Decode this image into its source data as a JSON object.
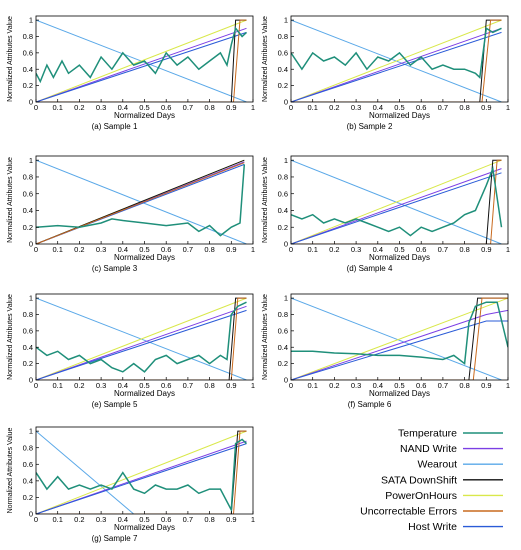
{
  "colors": {
    "Temperature": "#1f8f7a",
    "NAND Write": "#7b3fe4",
    "Wearout": "#5aa8e8",
    "SATA DownShift": "#111111",
    "PowerOnHours": "#d9e84a",
    "Uncorrectable Errors": "#c96a1e",
    "Host Write": "#2a5bd7"
  },
  "legend": {
    "position": "bottom-right",
    "entries": [
      "Temperature",
      "NAND Write",
      "Wearout",
      "SATA DownShift",
      "PowerOnHours",
      "Uncorrectable Errors",
      "Host Write"
    ]
  },
  "chart_data": [
    {
      "type": "line",
      "caption": "(a)  Sample 1",
      "xlabel": "Normalized Days",
      "ylabel": "Normalized Attributes Value",
      "xlim": [
        0,
        1
      ],
      "ylim": [
        0,
        1.05
      ],
      "xticks": [
        "0",
        "0.1",
        "0.2",
        "0.3",
        "0.4",
        "0.5",
        "0.6",
        "0.7",
        "0.8",
        "0.9",
        "1"
      ],
      "yticks": [
        "0",
        "0.2",
        "0.4",
        "0.6",
        "0.8",
        "1"
      ],
      "grid": false,
      "series": [
        {
          "name": "Wearout",
          "x": [
            0,
            0.97
          ],
          "y": [
            1.0,
            0.0
          ]
        },
        {
          "name": "PowerOnHours",
          "x": [
            0,
            0.97
          ],
          "y": [
            0,
            1.0
          ]
        },
        {
          "name": "NAND Write",
          "x": [
            0,
            0.97
          ],
          "y": [
            0,
            0.9
          ]
        },
        {
          "name": "Host Write",
          "x": [
            0,
            0.97
          ],
          "y": [
            0,
            0.85
          ]
        },
        {
          "name": "SATA DownShift",
          "x": [
            0,
            0.9,
            0.92,
            0.97
          ],
          "y": [
            0,
            0,
            1.0,
            1.0
          ]
        },
        {
          "name": "Uncorrectable Errors",
          "x": [
            0,
            0.91,
            0.94,
            0.97
          ],
          "y": [
            0,
            0,
            1.0,
            1.0
          ]
        },
        {
          "name": "Temperature",
          "x": [
            0,
            0.02,
            0.05,
            0.08,
            0.12,
            0.15,
            0.2,
            0.25,
            0.3,
            0.35,
            0.4,
            0.45,
            0.5,
            0.55,
            0.6,
            0.65,
            0.7,
            0.75,
            0.8,
            0.85,
            0.88,
            0.9,
            0.92,
            0.95,
            0.97
          ],
          "y": [
            0.35,
            0.25,
            0.45,
            0.3,
            0.5,
            0.35,
            0.45,
            0.3,
            0.55,
            0.4,
            0.6,
            0.45,
            0.5,
            0.35,
            0.6,
            0.45,
            0.55,
            0.4,
            0.5,
            0.6,
            0.45,
            0.7,
            0.9,
            0.8,
            0.85
          ]
        }
      ]
    },
    {
      "type": "line",
      "caption": "(b)  Sample 2",
      "xlabel": "Normalized Days",
      "ylabel": "Normalized Attributes Value",
      "xlim": [
        0,
        1
      ],
      "ylim": [
        0,
        1.05
      ],
      "xticks": [
        "0",
        "0.1",
        "0.2",
        "0.3",
        "0.4",
        "0.5",
        "0.6",
        "0.7",
        "0.8",
        "0.9",
        "1"
      ],
      "yticks": [
        "0",
        "0.2",
        "0.4",
        "0.6",
        "0.8",
        "1"
      ],
      "grid": false,
      "series": [
        {
          "name": "Wearout",
          "x": [
            0,
            0.97
          ],
          "y": [
            1.0,
            0.0
          ]
        },
        {
          "name": "PowerOnHours",
          "x": [
            0,
            0.97
          ],
          "y": [
            0,
            1.0
          ]
        },
        {
          "name": "NAND Write",
          "x": [
            0,
            0.97
          ],
          "y": [
            0,
            0.9
          ]
        },
        {
          "name": "Host Write",
          "x": [
            0,
            0.97
          ],
          "y": [
            0,
            0.85
          ]
        },
        {
          "name": "SATA DownShift",
          "x": [
            0,
            0.87,
            0.9,
            0.97
          ],
          "y": [
            0,
            0,
            1.0,
            1.0
          ]
        },
        {
          "name": "Uncorrectable Errors",
          "x": [
            0,
            0.88,
            0.92,
            0.97
          ],
          "y": [
            0,
            0,
            1.0,
            1.0
          ]
        },
        {
          "name": "Temperature",
          "x": [
            0,
            0.05,
            0.1,
            0.15,
            0.2,
            0.25,
            0.3,
            0.35,
            0.4,
            0.45,
            0.5,
            0.55,
            0.6,
            0.65,
            0.7,
            0.75,
            0.8,
            0.85,
            0.87,
            0.9,
            0.93,
            0.97
          ],
          "y": [
            0.6,
            0.4,
            0.6,
            0.5,
            0.55,
            0.45,
            0.6,
            0.4,
            0.55,
            0.5,
            0.6,
            0.45,
            0.55,
            0.4,
            0.45,
            0.4,
            0.4,
            0.35,
            0.3,
            0.9,
            0.85,
            0.9
          ]
        }
      ]
    },
    {
      "type": "line",
      "caption": "(c)  Sample 3",
      "xlabel": "Normalized Days",
      "ylabel": "Normalized Attributes Value",
      "xlim": [
        0,
        1
      ],
      "ylim": [
        0,
        1.05
      ],
      "xticks": [
        "0",
        "0.1",
        "0.2",
        "0.3",
        "0.4",
        "0.5",
        "0.6",
        "0.7",
        "0.8",
        "0.9",
        "1"
      ],
      "yticks": [
        "0",
        "0.2",
        "0.4",
        "0.6",
        "0.8",
        "1"
      ],
      "grid": false,
      "series": [
        {
          "name": "Wearout",
          "x": [
            0,
            0.97
          ],
          "y": [
            1.0,
            0.0
          ]
        },
        {
          "name": "PowerOnHours",
          "x": [
            0,
            0.96
          ],
          "y": [
            0,
            1.0
          ]
        },
        {
          "name": "NAND Write",
          "x": [
            0,
            0.96
          ],
          "y": [
            0,
            0.98
          ]
        },
        {
          "name": "Host Write",
          "x": [
            0,
            0.96
          ],
          "y": [
            0,
            0.95
          ]
        },
        {
          "name": "SATA DownShift",
          "x": [
            0,
            0.96
          ],
          "y": [
            0,
            1.0
          ]
        },
        {
          "name": "Uncorrectable Errors",
          "x": [
            0,
            0.96
          ],
          "y": [
            0,
            0.97
          ]
        },
        {
          "name": "Temperature",
          "x": [
            0,
            0.1,
            0.2,
            0.3,
            0.35,
            0.4,
            0.5,
            0.6,
            0.7,
            0.75,
            0.8,
            0.85,
            0.9,
            0.94,
            0.96
          ],
          "y": [
            0.2,
            0.22,
            0.2,
            0.25,
            0.3,
            0.28,
            0.25,
            0.22,
            0.25,
            0.15,
            0.22,
            0.1,
            0.2,
            0.25,
            0.95
          ]
        }
      ]
    },
    {
      "type": "line",
      "caption": "(d)  Sample 4",
      "xlabel": "Normalized Days",
      "ylabel": "Normalized Attributes Value",
      "xlim": [
        0,
        1
      ],
      "ylim": [
        0,
        1.05
      ],
      "xticks": [
        "0",
        "0.1",
        "0.2",
        "0.3",
        "0.4",
        "0.5",
        "0.6",
        "0.7",
        "0.8",
        "0.9",
        "1"
      ],
      "yticks": [
        "0",
        "0.2",
        "0.4",
        "0.6",
        "0.8",
        "1"
      ],
      "grid": false,
      "series": [
        {
          "name": "Wearout",
          "x": [
            0,
            0.97
          ],
          "y": [
            1.0,
            0.0
          ]
        },
        {
          "name": "PowerOnHours",
          "x": [
            0,
            0.97
          ],
          "y": [
            0,
            1.0
          ]
        },
        {
          "name": "NAND Write",
          "x": [
            0,
            0.97
          ],
          "y": [
            0,
            0.9
          ]
        },
        {
          "name": "Host Write",
          "x": [
            0,
            0.97
          ],
          "y": [
            0,
            0.85
          ]
        },
        {
          "name": "SATA DownShift",
          "x": [
            0,
            0.9,
            0.93,
            0.97
          ],
          "y": [
            0,
            0,
            1.0,
            1.0
          ]
        },
        {
          "name": "Uncorrectable Errors",
          "x": [
            0,
            0.92,
            0.95,
            0.97
          ],
          "y": [
            0,
            0,
            1.0,
            1.0
          ]
        },
        {
          "name": "Temperature",
          "x": [
            0,
            0.05,
            0.1,
            0.15,
            0.2,
            0.25,
            0.3,
            0.35,
            0.4,
            0.45,
            0.5,
            0.55,
            0.6,
            0.65,
            0.7,
            0.75,
            0.8,
            0.85,
            0.9,
            0.93,
            0.97
          ],
          "y": [
            0.35,
            0.3,
            0.35,
            0.25,
            0.3,
            0.25,
            0.3,
            0.25,
            0.2,
            0.15,
            0.2,
            0.1,
            0.2,
            0.15,
            0.2,
            0.25,
            0.35,
            0.4,
            0.7,
            0.9,
            0.2
          ]
        }
      ]
    },
    {
      "type": "line",
      "caption": "(e)  Sample 5",
      "xlabel": "Normalized Days",
      "ylabel": "Normalized Attributes Value",
      "xlim": [
        0,
        1
      ],
      "ylim": [
        0,
        1.05
      ],
      "xticks": [
        "0",
        "0.1",
        "0.2",
        "0.3",
        "0.4",
        "0.5",
        "0.6",
        "0.7",
        "0.8",
        "0.9",
        "1"
      ],
      "yticks": [
        "0",
        "0.2",
        "0.4",
        "0.6",
        "0.8",
        "1"
      ],
      "grid": false,
      "series": [
        {
          "name": "Wearout",
          "x": [
            0,
            0.97
          ],
          "y": [
            1.0,
            0.0
          ]
        },
        {
          "name": "PowerOnHours",
          "x": [
            0,
            0.97
          ],
          "y": [
            0,
            1.0
          ]
        },
        {
          "name": "NAND Write",
          "x": [
            0,
            0.97
          ],
          "y": [
            0,
            0.9
          ]
        },
        {
          "name": "Host Write",
          "x": [
            0,
            0.97
          ],
          "y": [
            0,
            0.85
          ]
        },
        {
          "name": "SATA DownShift",
          "x": [
            0,
            0.89,
            0.92,
            0.97
          ],
          "y": [
            0,
            0,
            1.0,
            1.0
          ]
        },
        {
          "name": "Uncorrectable Errors",
          "x": [
            0,
            0.9,
            0.93,
            0.97
          ],
          "y": [
            0,
            0,
            1.0,
            1.0
          ]
        },
        {
          "name": "Temperature",
          "x": [
            0,
            0.05,
            0.1,
            0.15,
            0.2,
            0.25,
            0.3,
            0.35,
            0.4,
            0.45,
            0.5,
            0.55,
            0.6,
            0.65,
            0.7,
            0.75,
            0.8,
            0.85,
            0.88,
            0.9,
            0.93,
            0.97
          ],
          "y": [
            0.4,
            0.3,
            0.35,
            0.25,
            0.3,
            0.2,
            0.25,
            0.15,
            0.1,
            0.2,
            0.1,
            0.25,
            0.3,
            0.2,
            0.25,
            0.3,
            0.2,
            0.3,
            0.25,
            0.8,
            0.9,
            0.95
          ]
        }
      ]
    },
    {
      "type": "line",
      "caption": "(f)  Sample 6",
      "xlabel": "Normalized Days",
      "ylabel": "Normalized Attributes Value",
      "xlim": [
        0,
        1
      ],
      "ylim": [
        0,
        1.05
      ],
      "xticks": [
        "0",
        "0.1",
        "0.2",
        "0.3",
        "0.4",
        "0.5",
        "0.6",
        "0.7",
        "0.8",
        "0.9",
        "1"
      ],
      "yticks": [
        "0",
        "0.2",
        "0.4",
        "0.6",
        "0.8",
        "1"
      ],
      "grid": false,
      "series": [
        {
          "name": "Wearout",
          "x": [
            0,
            0.97
          ],
          "y": [
            1.0,
            0.0
          ]
        },
        {
          "name": "PowerOnHours",
          "x": [
            0,
            0.9,
            1.0
          ],
          "y": [
            0,
            0.9,
            1.0
          ]
        },
        {
          "name": "NAND Write",
          "x": [
            0,
            0.9,
            1.0
          ],
          "y": [
            0,
            0.8,
            0.85
          ]
        },
        {
          "name": "Host Write",
          "x": [
            0,
            0.9,
            1.0
          ],
          "y": [
            0,
            0.72,
            0.72
          ]
        },
        {
          "name": "SATA DownShift",
          "x": [
            0,
            0.82,
            0.86,
            1.0
          ],
          "y": [
            0,
            0,
            1.0,
            1.0
          ]
        },
        {
          "name": "Uncorrectable Errors",
          "x": [
            0,
            0.84,
            0.88,
            1.0
          ],
          "y": [
            0,
            0,
            1.0,
            1.0
          ]
        },
        {
          "name": "Temperature",
          "x": [
            0,
            0.1,
            0.2,
            0.3,
            0.4,
            0.5,
            0.6,
            0.7,
            0.75,
            0.8,
            0.82,
            0.85,
            0.9,
            0.95,
            1.0
          ],
          "y": [
            0.35,
            0.35,
            0.33,
            0.32,
            0.3,
            0.3,
            0.28,
            0.25,
            0.3,
            0.2,
            0.7,
            0.9,
            0.95,
            0.95,
            0.4
          ]
        }
      ]
    },
    {
      "type": "line",
      "caption": "(g)  Sample 7",
      "xlabel": "Normalized Days",
      "ylabel": "Normalized Attributes Value",
      "xlim": [
        0,
        1
      ],
      "ylim": [
        0,
        1.05
      ],
      "xticks": [
        "0",
        "0.1",
        "0.2",
        "0.3",
        "0.4",
        "0.5",
        "0.6",
        "0.7",
        "0.8",
        "0.9",
        "1"
      ],
      "yticks": [
        "0",
        "0.2",
        "0.4",
        "0.6",
        "0.8",
        "1"
      ],
      "grid": false,
      "series": [
        {
          "name": "Wearout",
          "x": [
            0,
            0.45
          ],
          "y": [
            1.0,
            0.0
          ]
        },
        {
          "name": "PowerOnHours",
          "x": [
            0,
            0.97
          ],
          "y": [
            0,
            1.0
          ]
        },
        {
          "name": "NAND Write",
          "x": [
            0,
            0.97
          ],
          "y": [
            0,
            0.88
          ]
        },
        {
          "name": "Host Write",
          "x": [
            0,
            0.97
          ],
          "y": [
            0,
            0.85
          ]
        },
        {
          "name": "SATA DownShift",
          "x": [
            0,
            0.9,
            0.93,
            0.97
          ],
          "y": [
            0,
            0,
            1.0,
            1.0
          ]
        },
        {
          "name": "Uncorrectable Errors",
          "x": [
            0,
            0.91,
            0.94,
            0.97
          ],
          "y": [
            0,
            0,
            1.0,
            1.0
          ]
        },
        {
          "name": "Temperature",
          "x": [
            0,
            0.05,
            0.1,
            0.15,
            0.2,
            0.25,
            0.3,
            0.35,
            0.4,
            0.45,
            0.5,
            0.55,
            0.6,
            0.65,
            0.7,
            0.75,
            0.8,
            0.85,
            0.9,
            0.92,
            0.95,
            0.97
          ],
          "y": [
            0.5,
            0.3,
            0.45,
            0.3,
            0.35,
            0.3,
            0.35,
            0.3,
            0.5,
            0.3,
            0.25,
            0.35,
            0.3,
            0.3,
            0.35,
            0.25,
            0.3,
            0.3,
            0.05,
            0.85,
            0.9,
            0.85
          ]
        }
      ]
    }
  ]
}
